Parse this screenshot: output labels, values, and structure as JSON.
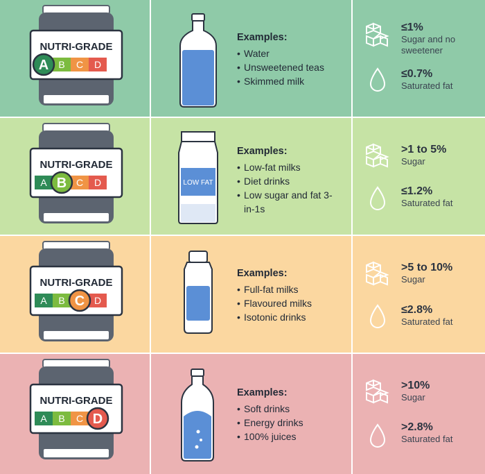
{
  "colors": {
    "page_bg": "#ffffff",
    "row_a": "#8fcaa8",
    "row_b": "#c6e3a5",
    "row_c": "#fbd7a0",
    "row_d": "#ebb2b3",
    "grade_a": "#2e8b57",
    "grade_b": "#7cbb3f",
    "grade_c": "#f09445",
    "grade_d": "#e45a4e",
    "can_body": "#5c6470",
    "bottle_blue": "#5b8fd6"
  },
  "label_title": "NUTRI-GRADE",
  "rows": [
    {
      "grade": "A",
      "active_index": 0,
      "letters": [
        "A",
        "B",
        "C",
        "D"
      ],
      "examples_title": "Examples:",
      "examples": [
        "Water",
        "Unsweetened teas",
        "Skimmed milk"
      ],
      "beverage_icon": "water-bottle-icon",
      "sugar_value": "≤1%",
      "sugar_label": "Sugar and no sweetener",
      "fat_value": "≤0.7%",
      "fat_label": "Saturated fat"
    },
    {
      "grade": "B",
      "active_index": 1,
      "letters": [
        "A",
        "B",
        "C",
        "D"
      ],
      "examples_title": "Examples:",
      "examples": [
        "Low-fat milks",
        "Diet drinks",
        "Low sugar and fat 3-in-1s"
      ],
      "beverage_icon": "milk-carton-icon",
      "carton_text": "LOW FAT",
      "sugar_value": ">1 to 5%",
      "sugar_label": "Sugar",
      "fat_value": "≤1.2%",
      "fat_label": "Saturated fat"
    },
    {
      "grade": "C",
      "active_index": 2,
      "letters": [
        "A",
        "B",
        "C",
        "D"
      ],
      "examples_title": "Examples:",
      "examples": [
        "Full-fat milks",
        "Flavoured milks",
        "Isotonic drinks"
      ],
      "beverage_icon": "sports-bottle-icon",
      "sugar_value": ">5 to 10%",
      "sugar_label": "Sugar",
      "fat_value": "≤2.8%",
      "fat_label": "Saturated fat"
    },
    {
      "grade": "D",
      "active_index": 3,
      "letters": [
        "A",
        "B",
        "C",
        "D"
      ],
      "examples_title": "Examples:",
      "examples": [
        "Soft drinks",
        "Energy drinks",
        "100% juices"
      ],
      "beverage_icon": "soda-bottle-icon",
      "sugar_value": ">10%",
      "sugar_label": "Sugar",
      "fat_value": ">2.8%",
      "fat_label": "Saturated fat"
    }
  ]
}
